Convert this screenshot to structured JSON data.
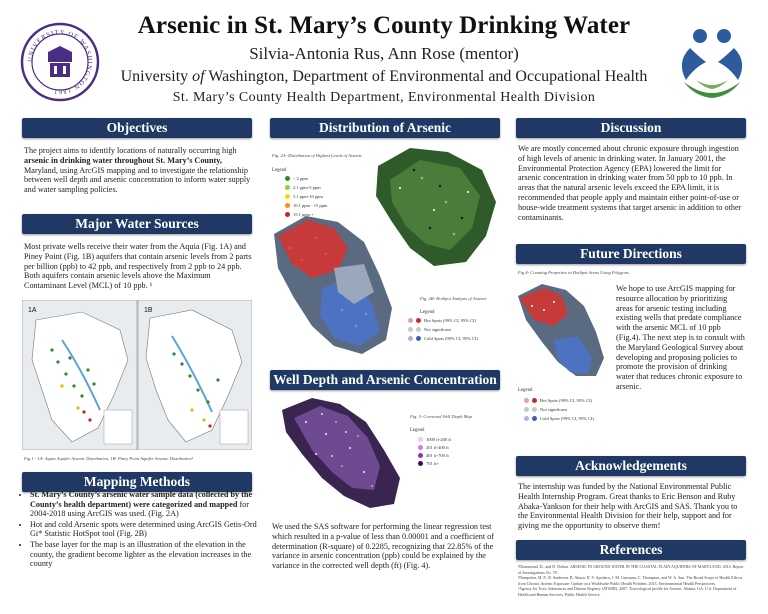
{
  "header": {
    "title": "Arsenic in St. Mary’s County Drinking Water",
    "authors": "Silvia-Antonia Rus, Ann Rose (mentor)",
    "affiliation_pre": "University ",
    "affiliation_of": "of",
    "affiliation_post": " Washington, Department of Environmental and Occupational Health",
    "affiliation2": "St. Mary’s County Health Department, Environmental Health Division",
    "seal_text": "UNIVERSITY OF WASHINGTON 1861"
  },
  "objectives": {
    "heading": "Objectives",
    "p1": "The project aims to identify locations of naturally occurring high",
    "p1_bold": "arsenic in drinking water throughout St. Mary’s County,",
    "p1_rest": "Maryland, using ArcGIS mapping and to investigate the relationship between well depth and arsenic concentration to inform water supply and water sampling policies."
  },
  "water_sources": {
    "heading": "Major Water Sources",
    "body": "Most private wells receive their water from the Aquia (Fig. 1A) and Piney Point (Fig. 1B) aquifers that contain arsenic levels from 2 parts per billion (ppb) to 42 ppb, and respectively from 2 ppb to 24 ppb. Both aquifers contain arsenic levels above the Maximum Contaminant Level (MCL) of 10 ppb. ¹",
    "fig_a_label": "1A",
    "fig_b_label": "1B",
    "caption": "Fig 1 - 1A- Aquia Aquifer Arsenic Distribution, 1B- Piney Point Aquifer Arsenic Distribution²"
  },
  "mapping_methods": {
    "heading": "Mapping Methods",
    "bullets": [
      {
        "bold": "St. Mary’s County’s arsenic water sample data (collected by the County’s health department) were categorized and mapped",
        "rest": " for 2004-2018 using ArcGIS was used. (Fig. 2A)"
      },
      {
        "bold": "",
        "rest": "Hot and cold Arsenic spots were determined using ArcGIS Getis-Ord Gi* Statistic HotSpot tool (Fig. 2B)"
      },
      {
        "bold": "",
        "rest": "The base layer for the map is an illustration of the elevation in the county, the gradient become lighter as the elevation increases in the county"
      }
    ]
  },
  "distribution": {
    "heading": "Distribution of Arsenic",
    "fig2a_caption": "Fig. 2A- Distribution of Highest Levels of Arsenic",
    "legend_label": "Legend",
    "legend_2a": [
      {
        "label": "< 2 ppm",
        "color": "#2e8b2e"
      },
      {
        "label": "2.1 ppm-5 ppm",
        "color": "#9acd32"
      },
      {
        "label": "5.1 ppm-10 ppm",
        "color": "#ffd700"
      },
      {
        "label": "10.1 ppm - 15 ppm",
        "color": "#ff8c00"
      },
      {
        "label": "15.1 ppm +",
        "color": "#d61f1f"
      }
    ],
    "fig2b_caption": "Fig. 2B- HotSpot Analysis of Arsenic",
    "legend_2b": [
      {
        "label": "Hot Spots (99% CI, 95% CI)",
        "color": "#cc2a2a"
      },
      {
        "label": "Not significant",
        "color": "#c8c8c8"
      },
      {
        "label": "Cold Spots (99% CI, 95% CI)",
        "color": "#3d5fb0"
      }
    ]
  },
  "well_depth": {
    "heading": "Well Depth and Arsenic Concentration",
    "fig4_caption": "Fig. 3- Corrected Well Depth Map",
    "legend_label": "Legend",
    "legend": [
      {
        "label": "1000 ft-200 ft",
        "color": "#f2c7e8"
      },
      {
        "label": "201 ft-400 ft",
        "color": "#d27be0"
      },
      {
        "label": "401 ft-700 ft",
        "color": "#8e2fb8"
      },
      {
        "label": "701 ft+",
        "color": "#3b0a5a"
      }
    ],
    "body": "We used the SAS software for performing the linear regression test which resulted in a p-value of less than 0.00001 and a coefficient of determination (R-square) of 0.2285, recognizing that 22.85% of the variance in arsenic concentration (ppb) could be explained by the variance in the corrected well depth (ft) (Fig. 4)."
  },
  "discussion": {
    "heading": "Discussion",
    "body": "We are mostly concerned about chronic exposure through ingestion of high levels of arsenic in drinking water. In January 2001, the Environmental Protection Agency (EPA) lowered the limit for arsenic concentration in drinking water from 50 ppb to 10 ppb. In areas that the natural arsenic levels exceed the EPA limit, it is recommended that people apply and maintain either point-of-use or house-wide treatment systems that target arsenic in addition to other contaminants."
  },
  "future": {
    "heading": "Future Directions",
    "fig_caption": "Fig 4- Counting Properties in HotSpot Areas Using Polygons",
    "body": "We hope to use ArcGIS mapping for resource allocation by prioritizing areas for arsenic testing including existing wells that predate compliance with the arsenic MCL of 10 ppb (Fig.4). The next step is to consult with the Maryland Geological Survey about developing and proposing policies to promote the provision of drinking water that reduces chronic exposure to arsenic.",
    "legend_label": "Legend",
    "legend": [
      {
        "label": "Hot Spots (99% CI, 95% CI)",
        "color": "#cc2a2a"
      },
      {
        "label": "Not significant",
        "color": "#c8c8c8"
      },
      {
        "label": "Cold Spots (99% CI, 95% CI)",
        "color": "#3d5fb0"
      }
    ]
  },
  "acknowledgements": {
    "heading": "Acknowledgements",
    "body": "The internship was funded by the National Environmental Public Health Internship Program. Great thanks to Eric Benson and Ruby Abaka-Yankson for their help with ArcGIS and SAS. Thank you to the Environmental Health Division for their help, support and for giving me the opportunity to observe them!"
  },
  "references": {
    "heading": "References",
    "items": [
      "¹Drummond, D., and D. Bolton. ARSENIC IN GROUND WATER IN THE COASTAL PLAIN AQUIFERS OF MARYLAND. 2014. Report of Investigations No. 78.",
      "²Nampalon, M. P., R. Andersen, R. Abaza, D. V. Apodaca, J. M. Gassman, C. Thompson, and W. A. Sun. The Broad Scope of Health Effects from Chronic Arsenic Exposure: Update on a Worldwide Public Health Problem. 2013. Environmental Health Perspectives.",
      "³Agency for Toxic Substances and Disease Registry (ATSDR). 2007. Toxicological profile for Arsenic. Atlanta, GA: U.S. Department of Health and Human Services, Public Health Service."
    ]
  }
}
